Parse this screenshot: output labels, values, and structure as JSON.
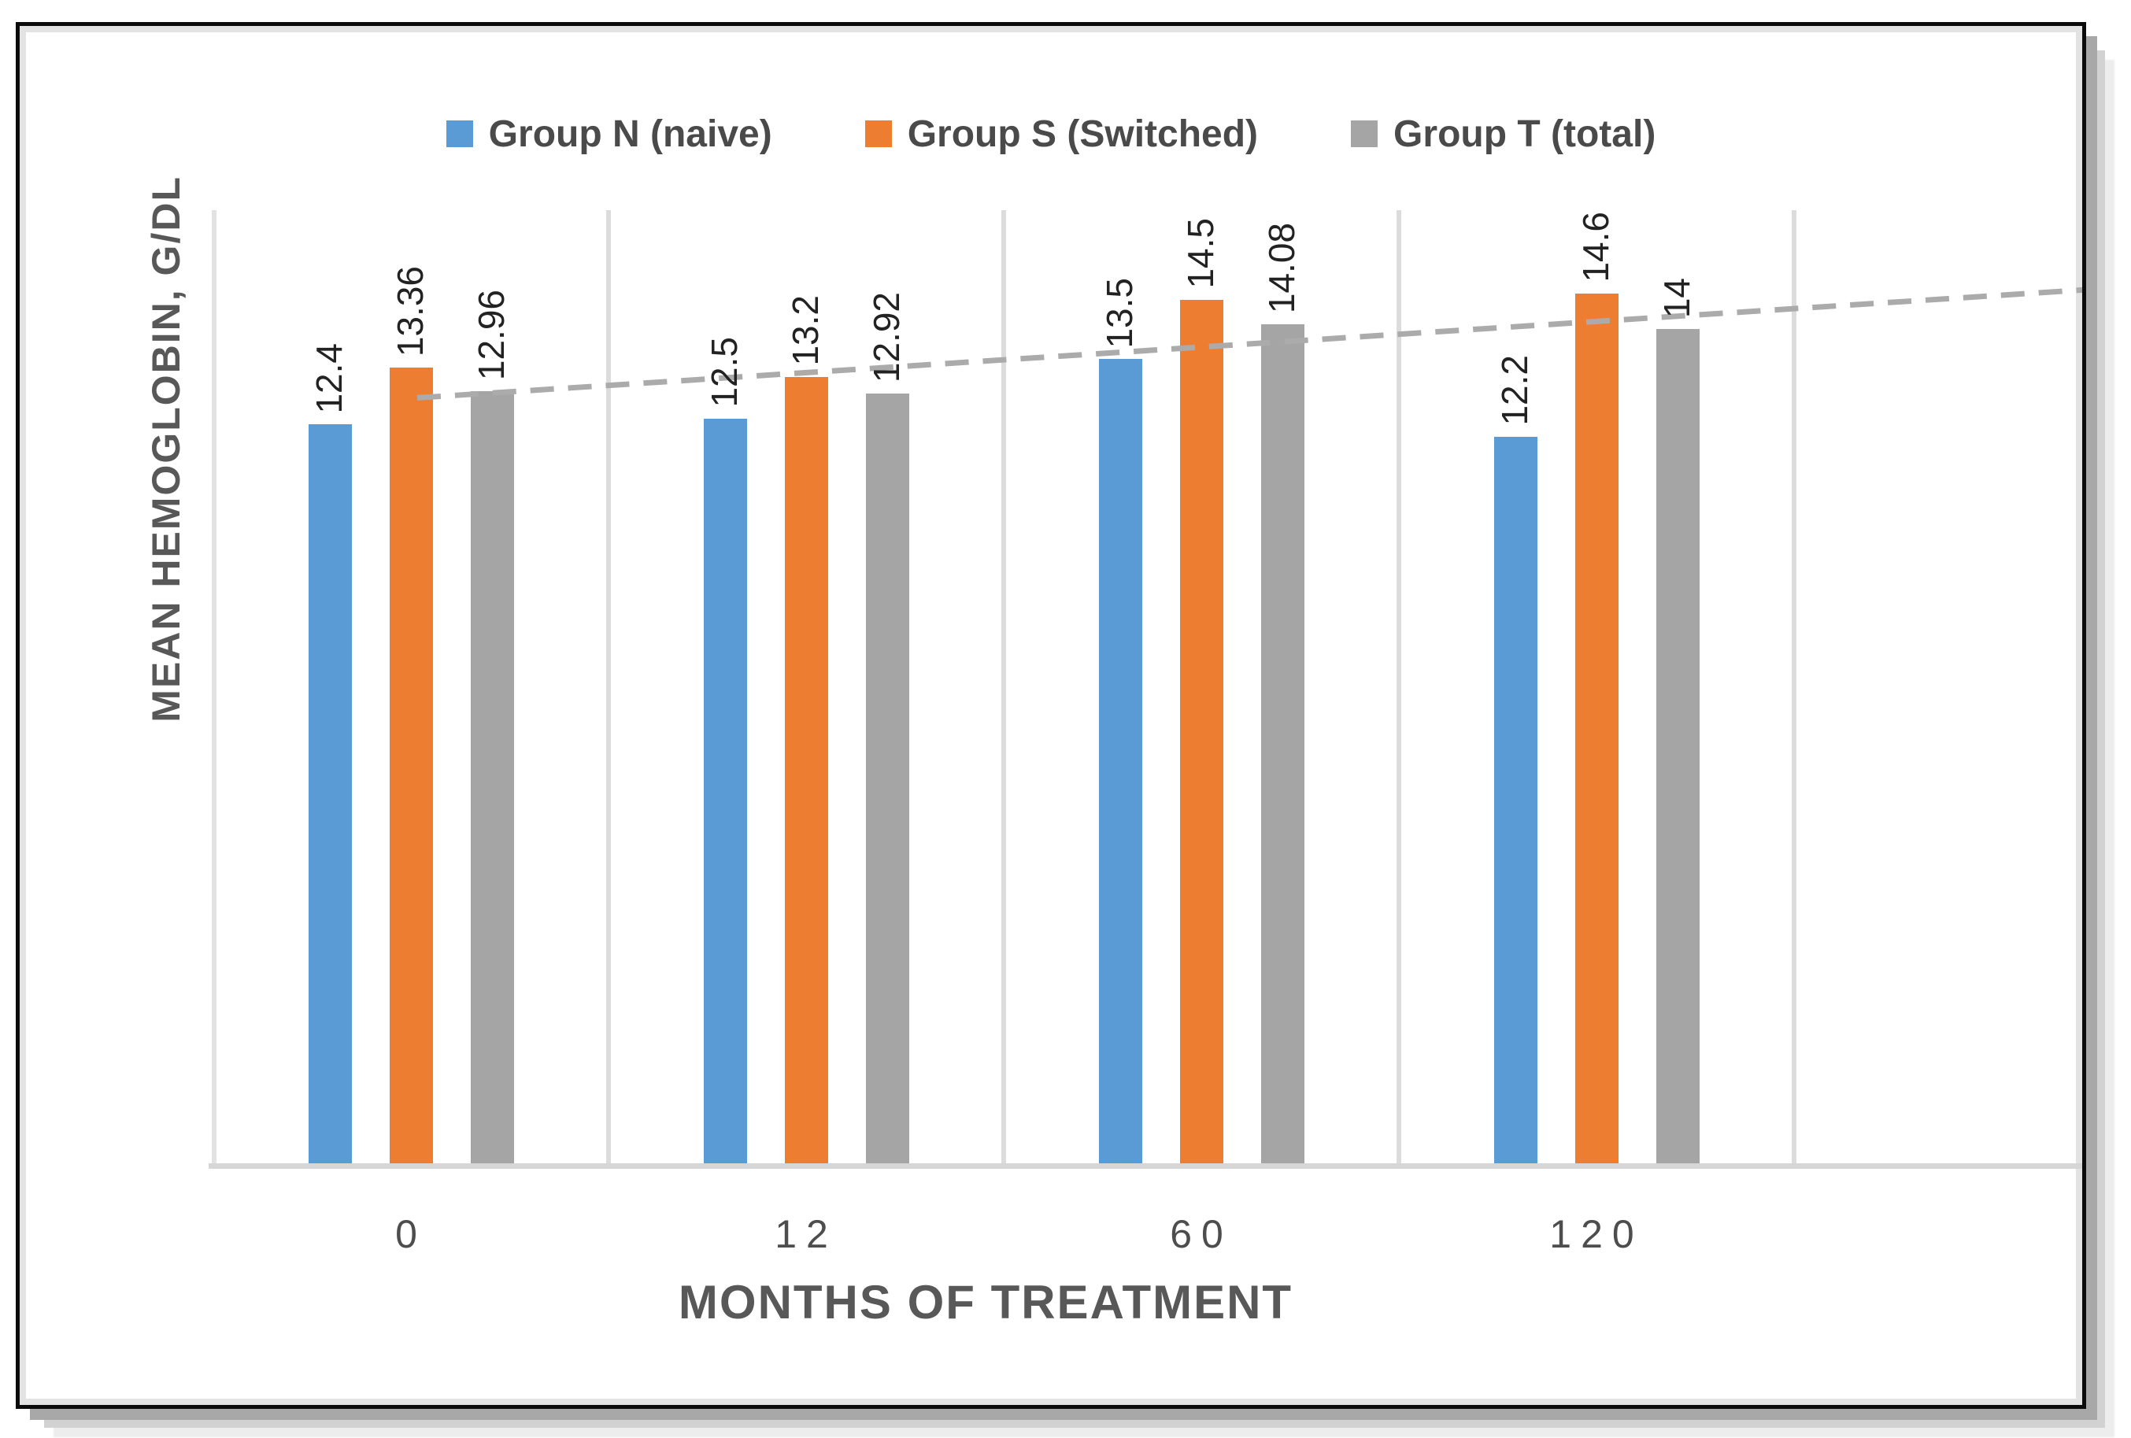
{
  "chart_data": {
    "type": "bar",
    "title": "",
    "categories": [
      "0",
      "12",
      "60",
      "120"
    ],
    "series": [
      {
        "name": "Group N (naive)",
        "color": "#5B9BD5",
        "values": [
          12.4,
          12.5,
          13.5,
          12.2
        ],
        "labels": [
          "12.4",
          "12.5",
          "13.5",
          "12.2"
        ]
      },
      {
        "name": "Group S (Switched)",
        "color": "#ED7D31",
        "values": [
          13.36,
          13.2,
          14.5,
          14.6
        ],
        "labels": [
          "13.36",
          "13.2",
          "14.5",
          "14.6"
        ]
      },
      {
        "name": "Group T (total)",
        "color": "#A5A5A5",
        "values": [
          12.96,
          12.92,
          14.08,
          14.0
        ],
        "labels": [
          "12.96",
          "12.92",
          "14.08",
          "14"
        ]
      }
    ],
    "xlabel": "MONTHS OF TREATMENT",
    "ylabel": "MEAN HEMOGLOBIN, G/DL",
    "ylim": [
      0,
      16
    ],
    "y_axis_tick_labels_visible": false,
    "legend_position": "top",
    "grid": "vertical-category-separators",
    "gridline_color": "#DCDCDC",
    "axis_line_color": "#D6D6D6",
    "trendline": {
      "series": "Group T (total)",
      "type": "linear",
      "style": "dashed",
      "color": "#ABABAB",
      "value_at_first_category": 12.85,
      "value_at_right_edge": 14.66,
      "extends_past_last_category": true
    }
  }
}
